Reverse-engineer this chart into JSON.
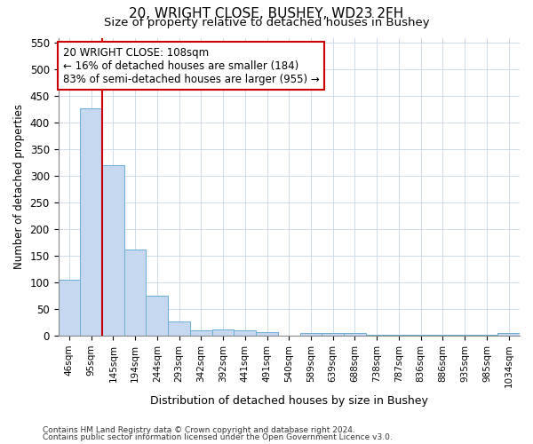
{
  "title1": "20, WRIGHT CLOSE, BUSHEY, WD23 2FH",
  "title2": "Size of property relative to detached houses in Bushey",
  "xlabel": "Distribution of detached houses by size in Bushey",
  "ylabel": "Number of detached properties",
  "categories": [
    "46sqm",
    "95sqm",
    "145sqm",
    "194sqm",
    "244sqm",
    "293sqm",
    "342sqm",
    "392sqm",
    "441sqm",
    "491sqm",
    "540sqm",
    "589sqm",
    "639sqm",
    "688sqm",
    "738sqm",
    "787sqm",
    "836sqm",
    "886sqm",
    "935sqm",
    "985sqm",
    "1034sqm"
  ],
  "values": [
    105,
    428,
    320,
    162,
    75,
    27,
    10,
    12,
    10,
    6,
    0,
    5,
    5,
    4,
    1,
    1,
    1,
    1,
    1,
    1,
    4
  ],
  "bar_color": "#c5d8f0",
  "bar_edge_color": "#6baed6",
  "vline_x": 1.5,
  "vline_color": "#cc0000",
  "annotation_title": "20 WRIGHT CLOSE: 108sqm",
  "annotation_line1": "← 16% of detached houses are smaller (184)",
  "annotation_line2": "83% of semi-detached houses are larger (955) →",
  "annotation_box_facecolor": "#ffffff",
  "annotation_box_edgecolor": "#cc0000",
  "ylim": [
    0,
    560
  ],
  "yticks": [
    0,
    50,
    100,
    150,
    200,
    250,
    300,
    350,
    400,
    450,
    500,
    550
  ],
  "footer1": "Contains HM Land Registry data © Crown copyright and database right 2024.",
  "footer2": "Contains public sector information licensed under the Open Government Licence v3.0.",
  "bg_color": "#ffffff",
  "plot_bg_color": "#ffffff",
  "grid_color": "#c8d4e8"
}
